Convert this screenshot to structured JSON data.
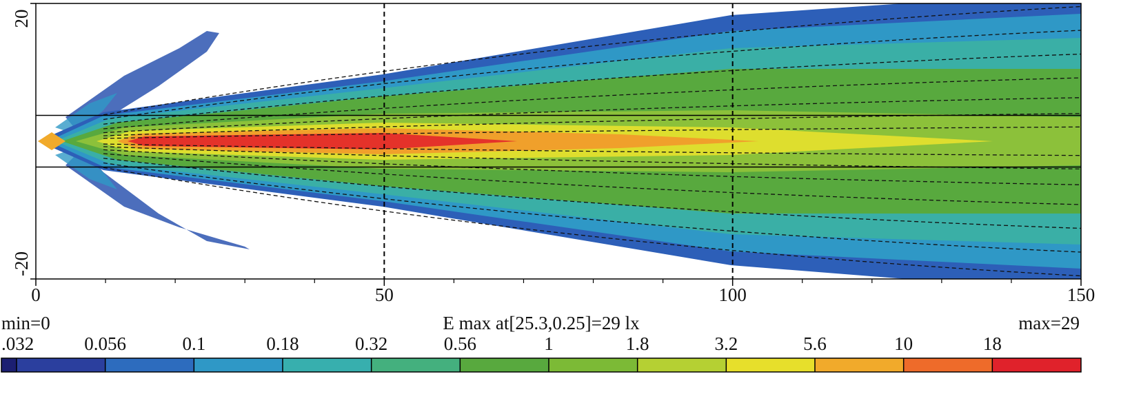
{
  "chart_data": {
    "type": "heatmap",
    "xlim": [
      0,
      150
    ],
    "xticks": [
      0,
      50,
      100,
      150
    ],
    "xminorticks": [
      10,
      20,
      30,
      40,
      60,
      70,
      80,
      90,
      110,
      120,
      130,
      140
    ],
    "ylim": [
      -20,
      20
    ],
    "yticks": [
      -20,
      20
    ],
    "vlines": [
      50,
      100
    ],
    "hlines": [
      -3.75,
      3.75
    ],
    "min_label": "min=0",
    "title": "E max at[25.3,0.25]=29 lx",
    "max_label": "max=29",
    "colorbar": {
      "levels": [
        {
          "value": 0.032,
          "label": ".032"
        },
        0.056,
        0.1,
        0.18,
        0.32,
        0.56,
        1,
        1.8,
        3.2,
        5.6,
        10,
        18
      ],
      "colors": [
        "#1c1f72",
        "#2b3f9e",
        "#2d6cbe",
        "#2f98c6",
        "#37afae",
        "#44b07e",
        "#58a93e",
        "#7cba36",
        "#b5d033",
        "#e7df2b",
        "#f1aa2b",
        "#ee6b2a",
        "#e0222b"
      ]
    }
  }
}
